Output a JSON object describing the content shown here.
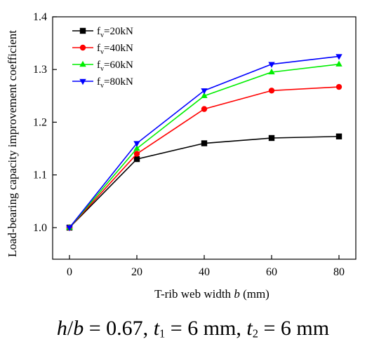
{
  "chart_data": {
    "type": "line",
    "x": [
      0,
      20,
      40,
      60,
      80
    ],
    "xlim": [
      -5,
      85
    ],
    "ylim": [
      0.94,
      1.4
    ],
    "xticks": [
      "0",
      "20",
      "40",
      "60",
      "80"
    ],
    "yticks": [
      "1.0",
      "1.1",
      "1.2",
      "1.3",
      "1.4"
    ],
    "ytick_values": [
      1.0,
      1.1,
      1.2,
      1.3,
      1.4
    ],
    "xlabel": "T-rib web width b (mm)",
    "ylabel": "Load-bearing capacity improvement coefficient",
    "grid": false,
    "legend_position": "top-left",
    "series": [
      {
        "name": "fv=20kN",
        "legend_base": "f",
        "legend_sub": "v",
        "legend_rest": "=20kN",
        "color": "#000000",
        "marker": "square",
        "values": [
          1.0,
          1.13,
          1.16,
          1.17,
          1.173
        ]
      },
      {
        "name": "fv=40kN",
        "legend_base": "f",
        "legend_sub": "v",
        "legend_rest": "=40kN",
        "color": "#ff0000",
        "marker": "circle",
        "values": [
          1.0,
          1.14,
          1.225,
          1.26,
          1.267
        ]
      },
      {
        "name": "fv=60kN",
        "legend_base": "f",
        "legend_sub": "v",
        "legend_rest": "=60kN",
        "color": "#00ee00",
        "marker": "triangle-up",
        "values": [
          1.0,
          1.15,
          1.25,
          1.295,
          1.31
        ]
      },
      {
        "name": "fv=80kN",
        "legend_base": "f",
        "legend_sub": "v",
        "legend_rest": "=80kN",
        "color": "#0000ff",
        "marker": "triangle-down",
        "values": [
          1.0,
          1.16,
          1.26,
          1.31,
          1.325
        ]
      }
    ]
  },
  "caption": {
    "h": "h",
    "slash": "/",
    "b": "b",
    "ratio": " = 0.67, ",
    "t1_var": "t",
    "t1_sub": "1",
    "t1_val": " = 6 mm, ",
    "t2_var": "t",
    "t2_sub": "2",
    "t2_val": " = 6 mm"
  }
}
